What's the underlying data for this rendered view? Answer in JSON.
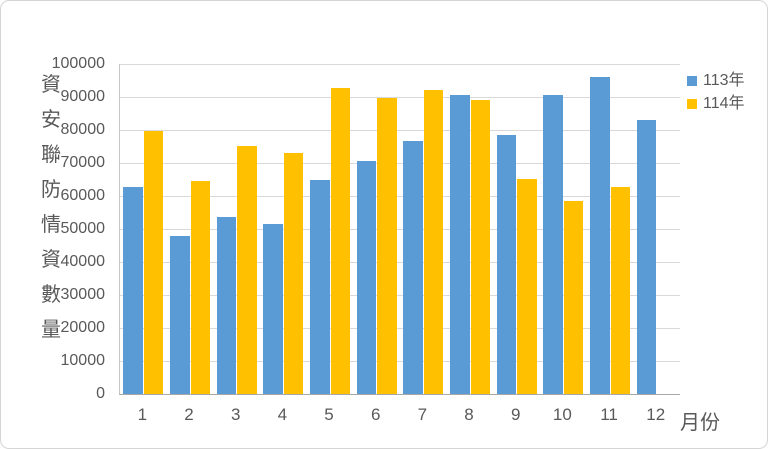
{
  "colors": {
    "background": "#FFFFFF",
    "card_border": "#D5D5D5",
    "text": "#595959",
    "grid": "#D9D9D9",
    "axis": "#A8A8A8",
    "axis_light": "#C6C6C6",
    "series_113": "#5B9BD5",
    "series_114": "#FFC000"
  },
  "chart_data": {
    "type": "bar",
    "title": "",
    "categories": [
      "1",
      "2",
      "3",
      "4",
      "5",
      "6",
      "7",
      "8",
      "9",
      "10",
      "11",
      "12"
    ],
    "series": [
      {
        "name": "113年",
        "color": "#5B9BD5",
        "values": [
          62600,
          47800,
          53600,
          51500,
          64900,
          70700,
          76600,
          90600,
          78400,
          90700,
          96200,
          82900
        ]
      },
      {
        "name": "114年",
        "color": "#FFC000",
        "values": [
          79600,
          64500,
          75200,
          72900,
          92700,
          89600,
          92200,
          89200,
          65100,
          58600,
          62800,
          null
        ]
      }
    ],
    "xlabel": "月份",
    "ylabel": "資安聯防情資數量",
    "ylim": [
      0,
      100000
    ],
    "ytick_step": 10000,
    "y_tick_labels": [
      "0",
      "10000",
      "20000",
      "30000",
      "40000",
      "50000",
      "60000",
      "70000",
      "80000",
      "90000",
      "100000"
    ],
    "grid": true,
    "legend_position": "right"
  }
}
